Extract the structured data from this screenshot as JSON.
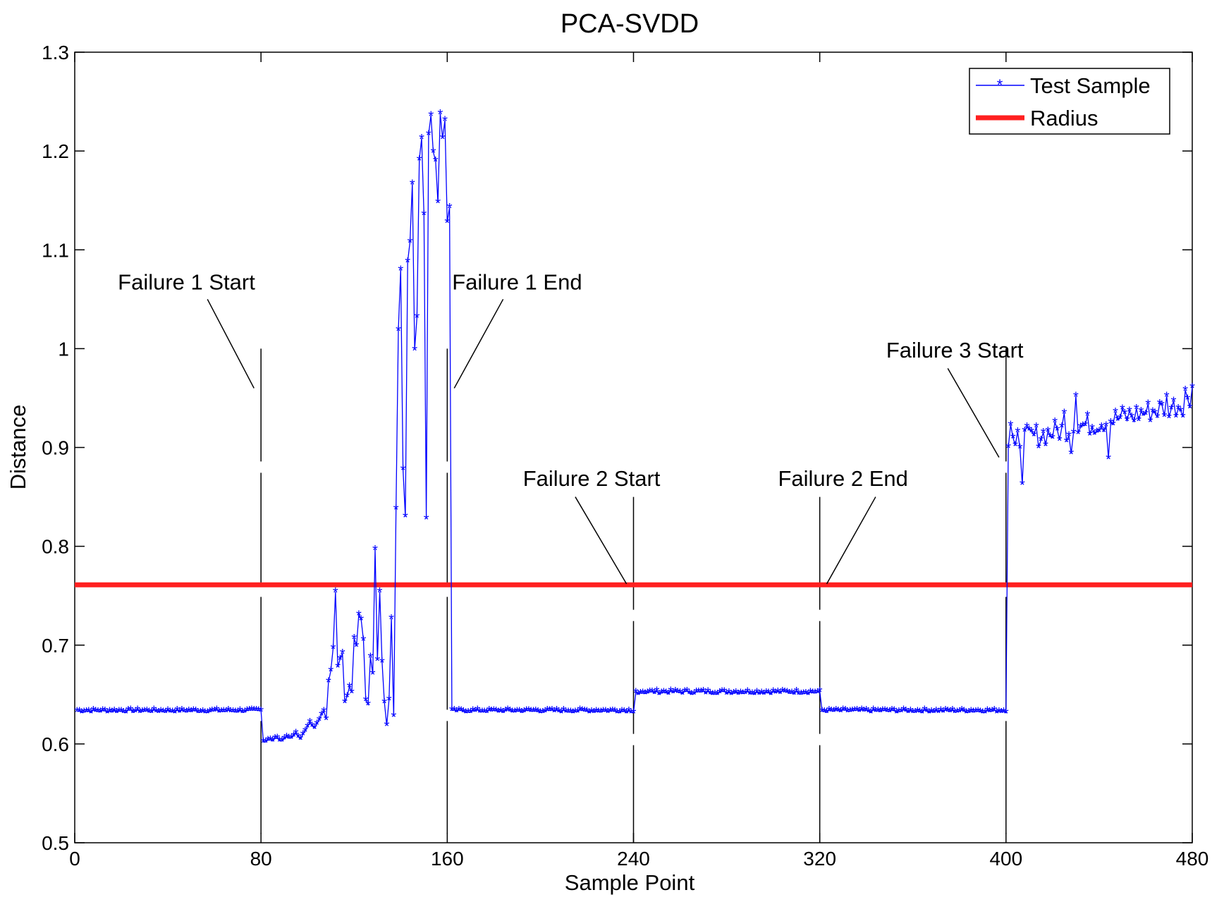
{
  "chart_data": {
    "type": "line",
    "title": "PCA-SVDD",
    "xlabel": "Sample Point",
    "ylabel": "Distance",
    "xlim": [
      0,
      480
    ],
    "ylim": [
      0.5,
      1.3
    ],
    "xticks": [
      0,
      80,
      160,
      240,
      320,
      400,
      480
    ],
    "yticks": [
      0.5,
      0.6,
      0.7,
      0.8,
      0.9,
      1,
      1.1,
      1.2,
      1.3
    ],
    "xtick_labels": [
      "0",
      "80",
      "160",
      "240",
      "320",
      "400",
      "480"
    ],
    "ytick_labels": [
      "0.5",
      "0.6",
      "0.7",
      "0.8",
      "0.9",
      "1",
      "1.1",
      "1.2",
      "1.3"
    ],
    "grid": false,
    "legend_position": "top-right",
    "series": [
      {
        "name": "Test Sample",
        "color": "#0000ff",
        "marker": "asterisk",
        "segments": [
          {
            "x_start": 1,
            "x_end": 80,
            "base": 0.633,
            "noise": 0.0015,
            "drift": 0
          },
          {
            "x_start": 241,
            "x_end": 320,
            "base": 0.652,
            "noise": 0.0018,
            "drift": 0
          },
          {
            "x_start": 321,
            "x_end": 400,
            "base": 0.633,
            "noise": 0.0015,
            "drift": 0
          }
        ],
        "points": [
          [
            81,
            0.602
          ],
          [
            83,
            0.604
          ],
          [
            85,
            0.603
          ],
          [
            87,
            0.606
          ],
          [
            89,
            0.603
          ],
          [
            91,
            0.607
          ],
          [
            93,
            0.606
          ],
          [
            95,
            0.611
          ],
          [
            97,
            0.605
          ],
          [
            99,
            0.613
          ],
          [
            101,
            0.622
          ],
          [
            103,
            0.616
          ],
          [
            105,
            0.624
          ],
          [
            107,
            0.633
          ],
          [
            108,
            0.625
          ],
          [
            109,
            0.663
          ],
          [
            110,
            0.674
          ],
          [
            111,
            0.697
          ],
          [
            112,
            0.754
          ],
          [
            113,
            0.678
          ],
          [
            114,
            0.686
          ],
          [
            115,
            0.692
          ],
          [
            116,
            0.642
          ],
          [
            117,
            0.648
          ],
          [
            118,
            0.658
          ],
          [
            119,
            0.652
          ],
          [
            120,
            0.707
          ],
          [
            121,
            0.699
          ],
          [
            122,
            0.731
          ],
          [
            123,
            0.726
          ],
          [
            124,
            0.705
          ],
          [
            125,
            0.644
          ],
          [
            126,
            0.64
          ],
          [
            127,
            0.688
          ],
          [
            128,
            0.671
          ],
          [
            129,
            0.797
          ],
          [
            130,
            0.685
          ],
          [
            131,
            0.754
          ],
          [
            132,
            0.683
          ],
          [
            133,
            0.642
          ],
          [
            134,
            0.619
          ],
          [
            135,
            0.645
          ],
          [
            136,
            0.727
          ],
          [
            137,
            0.628
          ],
          [
            138,
            0.838
          ],
          [
            139,
            1.019
          ],
          [
            140,
            1.08
          ],
          [
            141,
            0.878
          ],
          [
            142,
            0.83
          ],
          [
            143,
            1.088
          ],
          [
            144,
            1.108
          ],
          [
            145,
            1.167
          ],
          [
            146,
            0.999
          ],
          [
            147,
            1.032
          ],
          [
            148,
            1.191
          ],
          [
            149,
            1.213
          ],
          [
            150,
            1.136
          ],
          [
            151,
            0.828
          ],
          [
            152,
            1.217
          ],
          [
            153,
            1.236
          ],
          [
            154,
            1.199
          ],
          [
            155,
            1.19
          ],
          [
            156,
            1.148
          ],
          [
            157,
            1.238
          ],
          [
            158,
            1.213
          ],
          [
            159,
            1.231
          ],
          [
            160,
            1.128
          ],
          [
            161,
            1.143
          ],
          [
            162,
            0.634
          ]
        ],
        "tail": {
          "x_start": 401,
          "x_end": 480,
          "start": 0.905,
          "end": 0.945,
          "noise": 0.012
        },
        "spikes": [
          [
            402,
            0.923
          ],
          [
            404,
            0.902
          ],
          [
            407,
            0.863
          ],
          [
            417,
            0.902
          ],
          [
            425,
            0.935
          ],
          [
            428,
            0.894
          ],
          [
            430,
            0.952
          ],
          [
            444,
            0.889
          ],
          [
            469,
            0.952
          ],
          [
            477,
            0.958
          ],
          [
            480,
            0.961
          ]
        ]
      },
      {
        "name": "Radius",
        "color": "#ff2020",
        "value": 0.761
      }
    ],
    "vlines": [
      {
        "x": 80,
        "y_top": 1.0,
        "dash": "long"
      },
      {
        "x": 160,
        "y_top": 1.0,
        "dash": "long"
      },
      {
        "x": 240,
        "y_top": 0.85,
        "dash": "long"
      },
      {
        "x": 320,
        "y_top": 0.85,
        "dash": "long"
      },
      {
        "x": 400,
        "y_top": 1.0,
        "dash": "long"
      }
    ],
    "annotations": [
      {
        "text": "Failure 1 Start",
        "tx": 48,
        "ty": 1.06,
        "lx1": 57,
        "ly1": 1.05,
        "lx2": 77,
        "ly2": 0.96
      },
      {
        "text": "Failure 1 End",
        "tx": 190,
        "ty": 1.06,
        "lx1": 184,
        "ly1": 1.05,
        "lx2": 163,
        "ly2": 0.96
      },
      {
        "text": "Failure 2 Start",
        "tx": 222,
        "ty": 0.861,
        "lx1": 215,
        "ly1": 0.85,
        "lx2": 237,
        "ly2": 0.762
      },
      {
        "text": "Failure 2 End",
        "tx": 330,
        "ty": 0.861,
        "lx1": 344,
        "ly1": 0.85,
        "lx2": 323,
        "ly2": 0.762
      },
      {
        "text": "Failure 3 Start",
        "tx": 378,
        "ty": 0.991,
        "lx1": 375,
        "ly1": 0.98,
        "lx2": 397,
        "ly2": 0.89
      }
    ]
  }
}
